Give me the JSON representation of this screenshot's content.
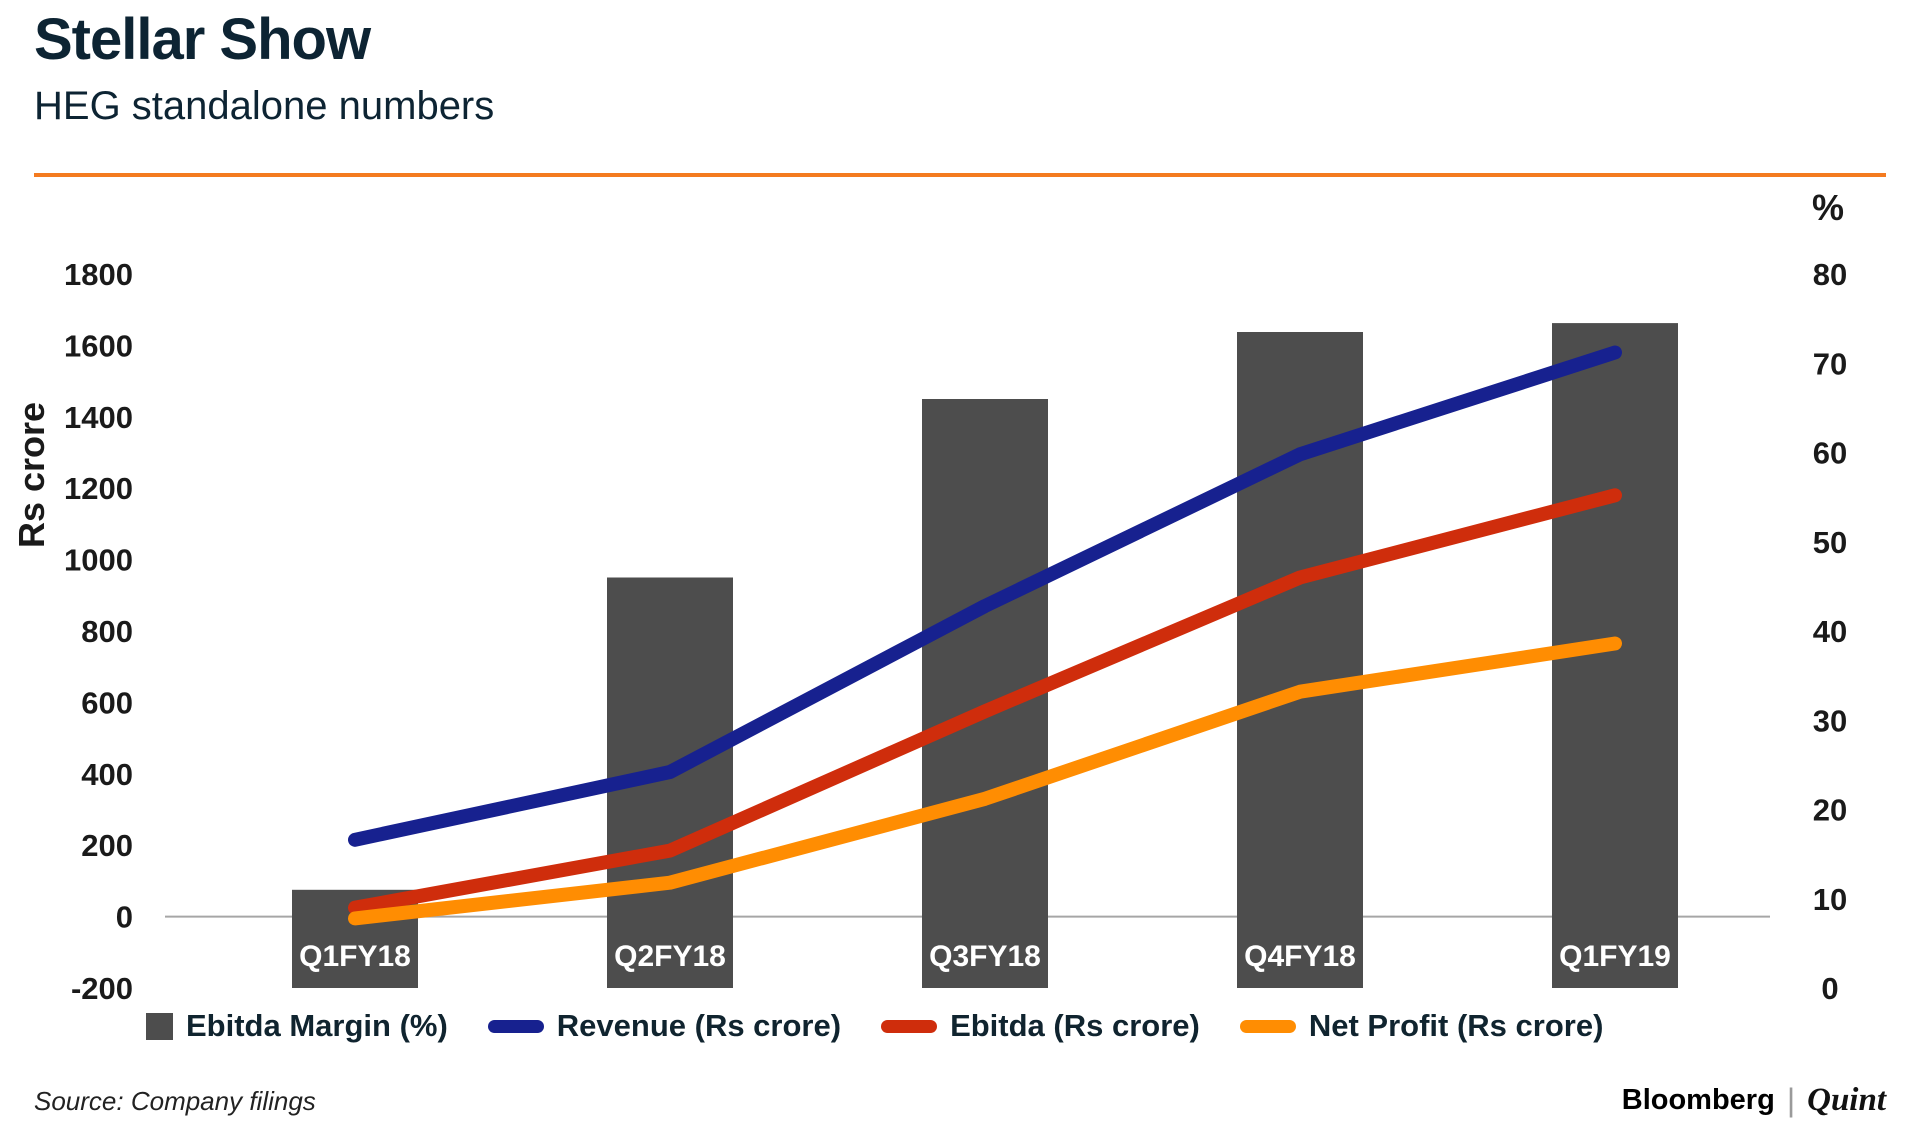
{
  "header": {
    "title": "Stellar Show",
    "subtitle": "HEG standalone numbers"
  },
  "accent_rule_color": "#F47B20",
  "chart_data": {
    "type": "combo-bar-line",
    "categories": [
      "Q1FY18",
      "Q2FY18",
      "Q3FY18",
      "Q4FY18",
      "Q1FY19"
    ],
    "bar_series": {
      "name": "Ebitda Margin (%)",
      "axis": "right",
      "values": [
        11,
        46,
        66,
        73.5,
        74.5
      ],
      "color": "#4D4D4D"
    },
    "line_series": [
      {
        "name": "Revenue (Rs crore)",
        "axis": "left",
        "values": [
          215,
          405,
          870,
          1295,
          1580
        ],
        "color": "#17218F"
      },
      {
        "name": "Ebitda (Rs crore)",
        "axis": "left",
        "values": [
          25,
          185,
          575,
          950,
          1180
        ],
        "color": "#CF2D0C"
      },
      {
        "name": "Net Profit (Rs crore)",
        "axis": "left",
        "values": [
          -5,
          95,
          330,
          630,
          765
        ],
        "color": "#FF8D02"
      }
    ],
    "left_axis": {
      "label": "Rs crore",
      "range": [
        -200,
        1800
      ],
      "ticks": [
        1800,
        1600,
        1400,
        1200,
        1000,
        800,
        600,
        400,
        200,
        0,
        -200
      ]
    },
    "right_axis": {
      "label": "%",
      "range": [
        0,
        80
      ],
      "ticks": [
        80,
        70,
        60,
        50,
        40,
        30,
        20,
        10,
        0
      ]
    },
    "grid": false,
    "zero_line_color": "#A6A6A6",
    "tick_color": "#1A1A1A",
    "x_label_color": "#FFFFFF",
    "legend_position": "bottom"
  },
  "footer": {
    "source": "Source: Company filings",
    "bloomberg": "Bloomberg",
    "separator": "|",
    "quint": "Quint"
  }
}
